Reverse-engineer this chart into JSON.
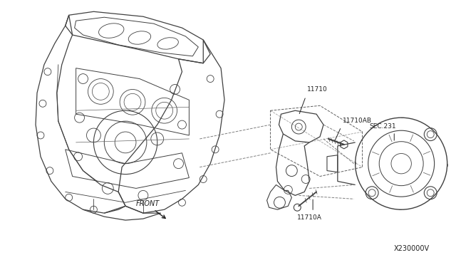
{
  "background_color": "#ffffff",
  "fig_width": 6.4,
  "fig_height": 3.72,
  "dpi": 100,
  "labels": {
    "front": "FRONT",
    "part1": "11710",
    "part2": "11710AB",
    "part3": "SEC.231",
    "part4": "11710A",
    "diagram_id": "X230000V"
  },
  "line_color": "#404040",
  "dashed_color": "#606060",
  "text_color": "#202020",
  "label_fontsize": 6.5,
  "diagram_id_fontsize": 7.0
}
